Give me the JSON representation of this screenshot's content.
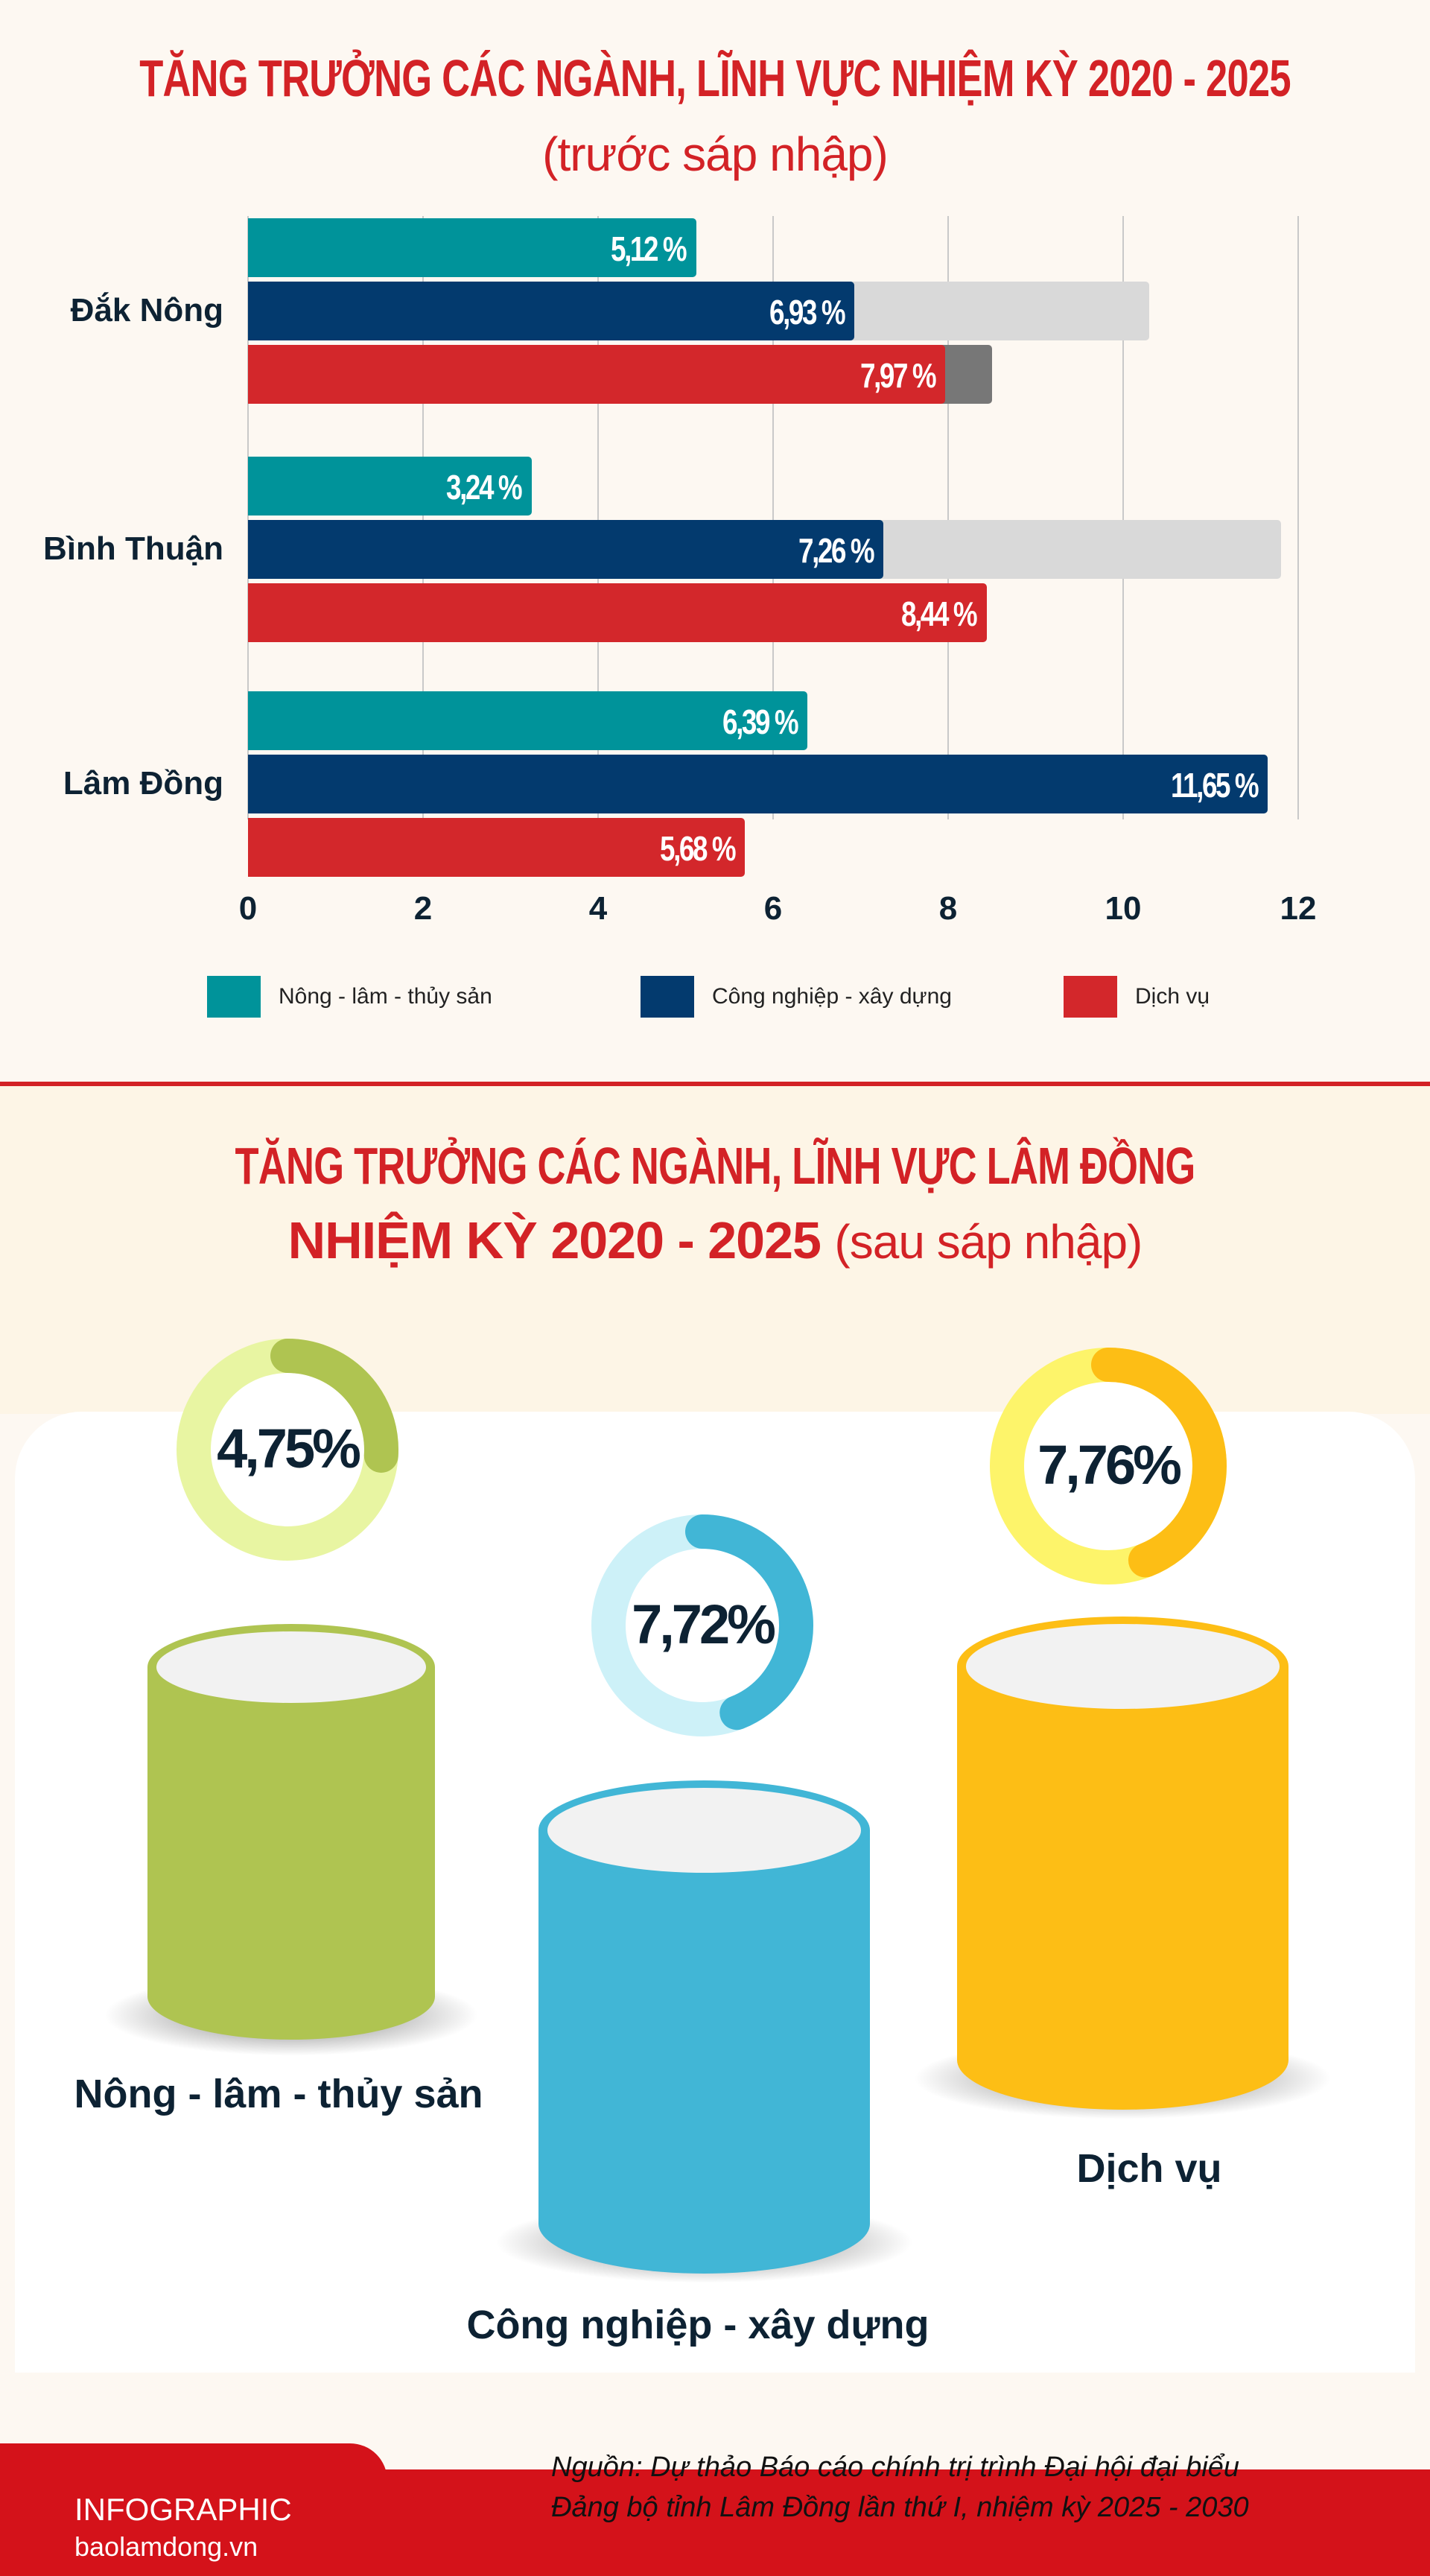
{
  "section1": {
    "title": "TĂNG TRƯỞNG CÁC NGÀNH, LĨNH VỰC NHIỆM KỲ 2020 - 2025",
    "subtitle": "(trước sáp nhập)"
  },
  "chart_data": {
    "type": "bar",
    "orientation": "horizontal",
    "categories": [
      "Đắk Nông",
      "Bình Thuận",
      "Lâm Đồng"
    ],
    "series": [
      {
        "name": "Nông - lâm - thủy sản",
        "color": "#00939a",
        "values": [
          5.12,
          3.24,
          6.39
        ],
        "labels": [
          "5,12 %",
          "3,24 %",
          "6,39 %"
        ]
      },
      {
        "name": "Công nghiệp - xây dựng",
        "color": "#033a6e",
        "values": [
          6.93,
          7.26,
          11.65
        ],
        "labels": [
          "6,93 %",
          "7,26 %",
          "11,65 %"
        ]
      },
      {
        "name": "Dịch vụ",
        "color": "#d3272b",
        "values": [
          7.97,
          8.44,
          5.68
        ],
        "labels": [
          "7,97 %",
          "8,44 %",
          "5,68 %"
        ]
      }
    ],
    "background_bars": [
      {
        "category": "Đắk Nông",
        "series": 1,
        "value": 10.3,
        "color": "#d9d9d9"
      },
      {
        "category": "Đắk Nông",
        "series": 2,
        "value": 8.5,
        "color": "#777777"
      },
      {
        "category": "Bình Thuận",
        "series": 1,
        "value": 11.8,
        "color": "#d9d9d9"
      }
    ],
    "xlim": [
      0,
      12
    ],
    "xticks": [
      "0",
      "2",
      "4",
      "6",
      "8",
      "10",
      "12"
    ],
    "grid": true,
    "legend": "bottom"
  },
  "section2": {
    "title_line1": "TĂNG TRƯỞNG CÁC NGÀNH, LĨNH VỰC LÂM ĐỒNG",
    "title_line2": "NHIỆM KỲ 2020 - 2025",
    "title_suffix": "(sau sáp nhập)",
    "items": [
      {
        "label": "Nông - lâm - thủy sản",
        "value": "4,75%",
        "arc": 0.26,
        "color": "#afc451",
        "light": "#e8f5a2"
      },
      {
        "label": "Công nghiệp - xây dựng",
        "value": "7,72%",
        "arc": 0.44,
        "color": "#41b6d6",
        "light": "#cdf1f8"
      },
      {
        "label": "Dịch vụ",
        "value": "7,76%",
        "arc": 0.44,
        "color": "#fdbe15",
        "light": "#fdf46a"
      }
    ]
  },
  "footer": {
    "brand": "INFOGRAPHIC",
    "site": "baolamdong.vn",
    "source_line1": "Nguồn: Dự thảo Báo cáo chính trị trình Đại hội đại biểu",
    "source_line2": "Đảng bộ tỉnh Lâm Đồng lần thứ I, nhiệm kỳ 2025 - 2030"
  }
}
